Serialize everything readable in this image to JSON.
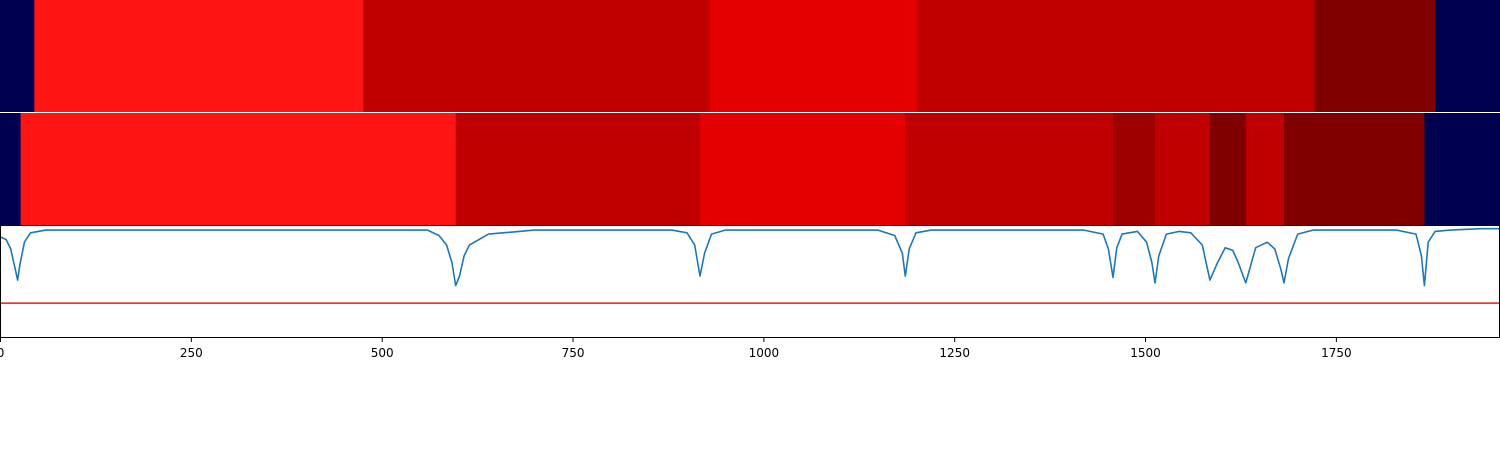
{
  "chart_data": [
    {
      "type": "heatmap",
      "segments": [
        {
          "start": 0,
          "end": 45,
          "color": "#000050"
        },
        {
          "start": 45,
          "end": 476,
          "color": "#ff1414"
        },
        {
          "start": 476,
          "end": 930,
          "color": "#c00000"
        },
        {
          "start": 930,
          "end": 1202,
          "color": "#e50000"
        },
        {
          "start": 1202,
          "end": 1722,
          "color": "#c00000"
        },
        {
          "start": 1722,
          "end": 1880,
          "color": "#800000"
        },
        {
          "start": 1880,
          "end": 1965,
          "color": "#000050"
        }
      ]
    },
    {
      "type": "heatmap",
      "segments": [
        {
          "start": 0,
          "end": 27,
          "color": "#000050"
        },
        {
          "start": 27,
          "end": 597,
          "color": "#ff1414"
        },
        {
          "start": 597,
          "end": 917,
          "color": "#c00000"
        },
        {
          "start": 917,
          "end": 1186,
          "color": "#e50000"
        },
        {
          "start": 1186,
          "end": 1458,
          "color": "#c00000"
        },
        {
          "start": 1458,
          "end": 1513,
          "color": "#9e0000"
        },
        {
          "start": 1513,
          "end": 1585,
          "color": "#c00000"
        },
        {
          "start": 1585,
          "end": 1632,
          "color": "#800000"
        },
        {
          "start": 1632,
          "end": 1682,
          "color": "#c00000"
        },
        {
          "start": 1682,
          "end": 1866,
          "color": "#800000"
        },
        {
          "start": 1866,
          "end": 1965,
          "color": "#000050"
        }
      ]
    },
    {
      "type": "line",
      "xlim": [
        0,
        1965
      ],
      "ylim": [
        -0.8,
        0.02
      ],
      "xticks": [
        "0",
        "250",
        "500",
        "750",
        "1000",
        "1250",
        "1500",
        "1750"
      ],
      "xtick_values": [
        0,
        250,
        500,
        750,
        1000,
        1250,
        1500,
        1750
      ],
      "threshold": {
        "y": -0.55,
        "color": "#e8161b"
      },
      "series": [
        {
          "color": "#1f77b4",
          "x": [
            0,
            8,
            14,
            20,
            23,
            26,
            32,
            40,
            60,
            560,
            575,
            585,
            592,
            597,
            602,
            608,
            615,
            640,
            700,
            880,
            900,
            910,
            917,
            923,
            932,
            950,
            1150,
            1172,
            1182,
            1186,
            1191,
            1200,
            1220,
            1420,
            1445,
            1452,
            1458,
            1463,
            1470,
            1490,
            1502,
            1509,
            1513,
            1518,
            1528,
            1545,
            1560,
            1575,
            1585,
            1595,
            1605,
            1615,
            1622,
            1628,
            1632,
            1637,
            1645,
            1660,
            1670,
            1678,
            1682,
            1688,
            1700,
            1720,
            1830,
            1855,
            1862,
            1866,
            1871,
            1880,
            1900,
            1940,
            1965
          ],
          "y": [
            -0.06,
            -0.08,
            -0.15,
            -0.3,
            -0.38,
            -0.27,
            -0.1,
            -0.03,
            -0.01,
            -0.01,
            -0.05,
            -0.12,
            -0.25,
            -0.42,
            -0.35,
            -0.2,
            -0.12,
            -0.04,
            -0.01,
            -0.01,
            -0.03,
            -0.12,
            -0.35,
            -0.18,
            -0.04,
            -0.01,
            -0.01,
            -0.05,
            -0.18,
            -0.35,
            -0.15,
            -0.03,
            -0.01,
            -0.01,
            -0.04,
            -0.15,
            -0.36,
            -0.14,
            -0.04,
            -0.02,
            -0.1,
            -0.25,
            -0.4,
            -0.2,
            -0.04,
            -0.02,
            -0.03,
            -0.12,
            -0.38,
            -0.25,
            -0.14,
            -0.16,
            -0.25,
            -0.34,
            -0.4,
            -0.3,
            -0.14,
            -0.1,
            -0.15,
            -0.3,
            -0.4,
            -0.22,
            -0.04,
            -0.01,
            -0.01,
            -0.04,
            -0.2,
            -0.42,
            -0.1,
            -0.02,
            -0.01,
            0.0,
            0.0
          ]
        }
      ]
    }
  ]
}
